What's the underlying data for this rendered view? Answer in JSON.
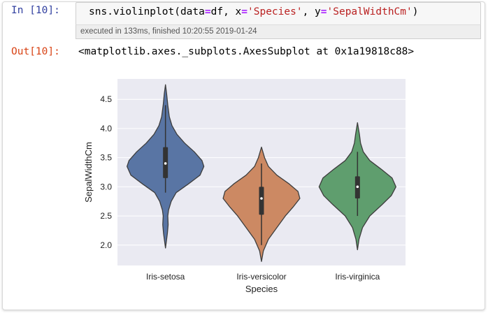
{
  "cell": {
    "in_prompt": "In [10]:",
    "code": {
      "func": "sns.violinplot(data",
      "eq1": "=",
      "arg1": "df, x",
      "eq2": "=",
      "str1": "'Species'",
      "arg2": ", y",
      "eq3": "=",
      "str2": "'SepalWidthCm'",
      "close": ")"
    },
    "exec_info": "executed in 133ms, finished 10:20:55 2019-01-24",
    "out_prompt": "Out[10]:",
    "out_text": "<matplotlib.axes._subplots.AxesSubplot at 0x1a19818c88>"
  },
  "colors": {
    "plot_bg": "#eaeaf2",
    "grid": "#ffffff",
    "in_prompt": "#303f9f",
    "out_prompt": "#d84315",
    "outline": "#3d3d3d"
  },
  "chart_data": {
    "type": "violin",
    "xlabel": "Species",
    "ylabel": "SepalWidthCm",
    "ylim": [
      1.65,
      4.85
    ],
    "yticks": [
      "2.0",
      "2.5",
      "3.0",
      "3.5",
      "4.0",
      "4.5"
    ],
    "grid": true,
    "categories": [
      "Iris-setosa",
      "Iris-versicolor",
      "Iris-virginica"
    ],
    "series": [
      {
        "category": "Iris-setosa",
        "color": "#5975a4",
        "min": 1.95,
        "max": 4.75,
        "q1": 3.15,
        "median": 3.4,
        "q3": 3.68,
        "whisker_low": 2.9,
        "whisker_high": 4.4,
        "profile": [
          [
            1.95,
            0.0
          ],
          [
            2.05,
            0.02
          ],
          [
            2.2,
            0.05
          ],
          [
            2.35,
            0.07
          ],
          [
            2.5,
            0.06
          ],
          [
            2.6,
            0.08
          ],
          [
            2.75,
            0.15
          ],
          [
            2.9,
            0.28
          ],
          [
            3.05,
            0.6
          ],
          [
            3.2,
            0.9
          ],
          [
            3.35,
            1.0
          ],
          [
            3.45,
            0.95
          ],
          [
            3.6,
            0.75
          ],
          [
            3.75,
            0.5
          ],
          [
            3.9,
            0.3
          ],
          [
            4.05,
            0.17
          ],
          [
            4.2,
            0.1
          ],
          [
            4.4,
            0.06
          ],
          [
            4.6,
            0.03
          ],
          [
            4.75,
            0.0
          ]
        ]
      },
      {
        "category": "Iris-versicolor",
        "color": "#cc8963",
        "min": 1.72,
        "max": 3.68,
        "q1": 2.52,
        "median": 2.8,
        "q3": 3.0,
        "whisker_low": 2.0,
        "whisker_high": 3.4,
        "profile": [
          [
            1.72,
            0.0
          ],
          [
            1.9,
            0.05
          ],
          [
            2.1,
            0.18
          ],
          [
            2.3,
            0.4
          ],
          [
            2.5,
            0.62
          ],
          [
            2.65,
            0.82
          ],
          [
            2.8,
            1.0
          ],
          [
            2.92,
            0.95
          ],
          [
            3.05,
            0.72
          ],
          [
            3.2,
            0.4
          ],
          [
            3.35,
            0.18
          ],
          [
            3.5,
            0.08
          ],
          [
            3.68,
            0.0
          ]
        ]
      },
      {
        "category": "Iris-virginica",
        "color": "#5f9e6e",
        "min": 1.92,
        "max": 4.1,
        "q1": 2.8,
        "median": 3.0,
        "q3": 3.18,
        "whisker_low": 2.5,
        "whisker_high": 3.6,
        "profile": [
          [
            1.92,
            0.0
          ],
          [
            2.1,
            0.04
          ],
          [
            2.3,
            0.13
          ],
          [
            2.5,
            0.32
          ],
          [
            2.7,
            0.65
          ],
          [
            2.85,
            0.88
          ],
          [
            3.0,
            1.0
          ],
          [
            3.15,
            0.9
          ],
          [
            3.3,
            0.62
          ],
          [
            3.45,
            0.32
          ],
          [
            3.6,
            0.15
          ],
          [
            3.75,
            0.08
          ],
          [
            3.9,
            0.05
          ],
          [
            4.1,
            0.0
          ]
        ]
      }
    ]
  }
}
